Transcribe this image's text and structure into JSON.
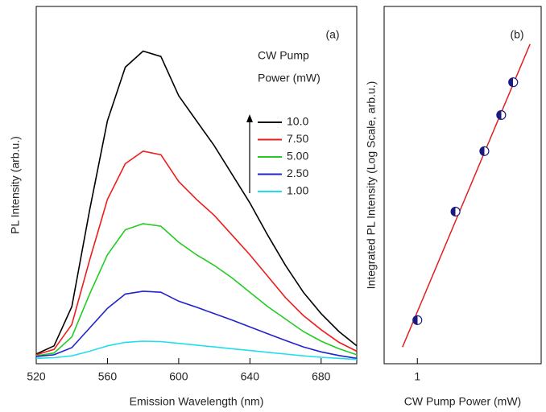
{
  "chart_data": [
    {
      "type": "line",
      "annotation": "(a)",
      "x_label": "Emission Wavelength (nm)",
      "y_label": "PL Intensity (arb.u.)",
      "xlim": [
        520,
        700
      ],
      "xticks": [
        520,
        560,
        600,
        640,
        680
      ],
      "ylim": [
        0,
        10
      ],
      "legend_title": [
        "CW Pump",
        "Power (mW)"
      ],
      "x": [
        520,
        530,
        540,
        550,
        560,
        570,
        580,
        590,
        600,
        610,
        620,
        630,
        640,
        650,
        660,
        670,
        680,
        690,
        700
      ],
      "series": [
        {
          "name": "10.0",
          "color": "#000000",
          "values": [
            0.27,
            0.5,
            1.6,
            4.3,
            6.8,
            8.3,
            8.75,
            8.6,
            7.5,
            6.8,
            6.1,
            5.3,
            4.5,
            3.6,
            2.75,
            2.0,
            1.4,
            0.9,
            0.5
          ]
        },
        {
          "name": "7.50",
          "color": "#ee1c1c",
          "values": [
            0.25,
            0.4,
            1.1,
            2.9,
            4.6,
            5.6,
            5.95,
            5.85,
            5.1,
            4.6,
            4.15,
            3.6,
            3.05,
            2.45,
            1.85,
            1.35,
            0.95,
            0.6,
            0.35
          ]
        },
        {
          "name": "5.00",
          "color": "#22cc22",
          "values": [
            0.22,
            0.3,
            0.75,
            1.95,
            3.05,
            3.75,
            3.92,
            3.85,
            3.4,
            3.05,
            2.75,
            2.4,
            2.0,
            1.6,
            1.25,
            0.9,
            0.63,
            0.42,
            0.25
          ]
        },
        {
          "name": "2.50",
          "color": "#2222cc",
          "values": [
            0.2,
            0.25,
            0.45,
            1.0,
            1.55,
            1.95,
            2.03,
            2.0,
            1.75,
            1.58,
            1.4,
            1.22,
            1.03,
            0.84,
            0.65,
            0.47,
            0.33,
            0.23,
            0.15
          ]
        },
        {
          "name": "1.00",
          "color": "#22ddee",
          "values": [
            0.15,
            0.17,
            0.22,
            0.35,
            0.5,
            0.6,
            0.63,
            0.62,
            0.57,
            0.52,
            0.47,
            0.42,
            0.37,
            0.32,
            0.27,
            0.22,
            0.18,
            0.15,
            0.12
          ]
        }
      ]
    },
    {
      "type": "scatter",
      "annotation": "(b)",
      "x_label": "CW Pump Power (mW)",
      "y_label": "Integrated PL Intensity (Log Scale, arb.u.)",
      "xlim": [
        0.45,
        19.6
      ],
      "xticks": [
        1
      ],
      "ylim": [
        0.56,
        165
      ],
      "log_x": true,
      "log_y": true,
      "series": [
        {
          "mode": "line",
          "color": "#e02020",
          "x": [
            0.7,
            15
          ],
          "values": [
            0.73,
            90.6
          ]
        },
        {
          "mode": "markers",
          "color": "#1a1a80",
          "x": [
            1,
            2.5,
            5,
            7.5,
            10
          ],
          "values": [
            1.12,
            6.3,
            16.5,
            29.3,
            49.4
          ]
        }
      ]
    }
  ]
}
